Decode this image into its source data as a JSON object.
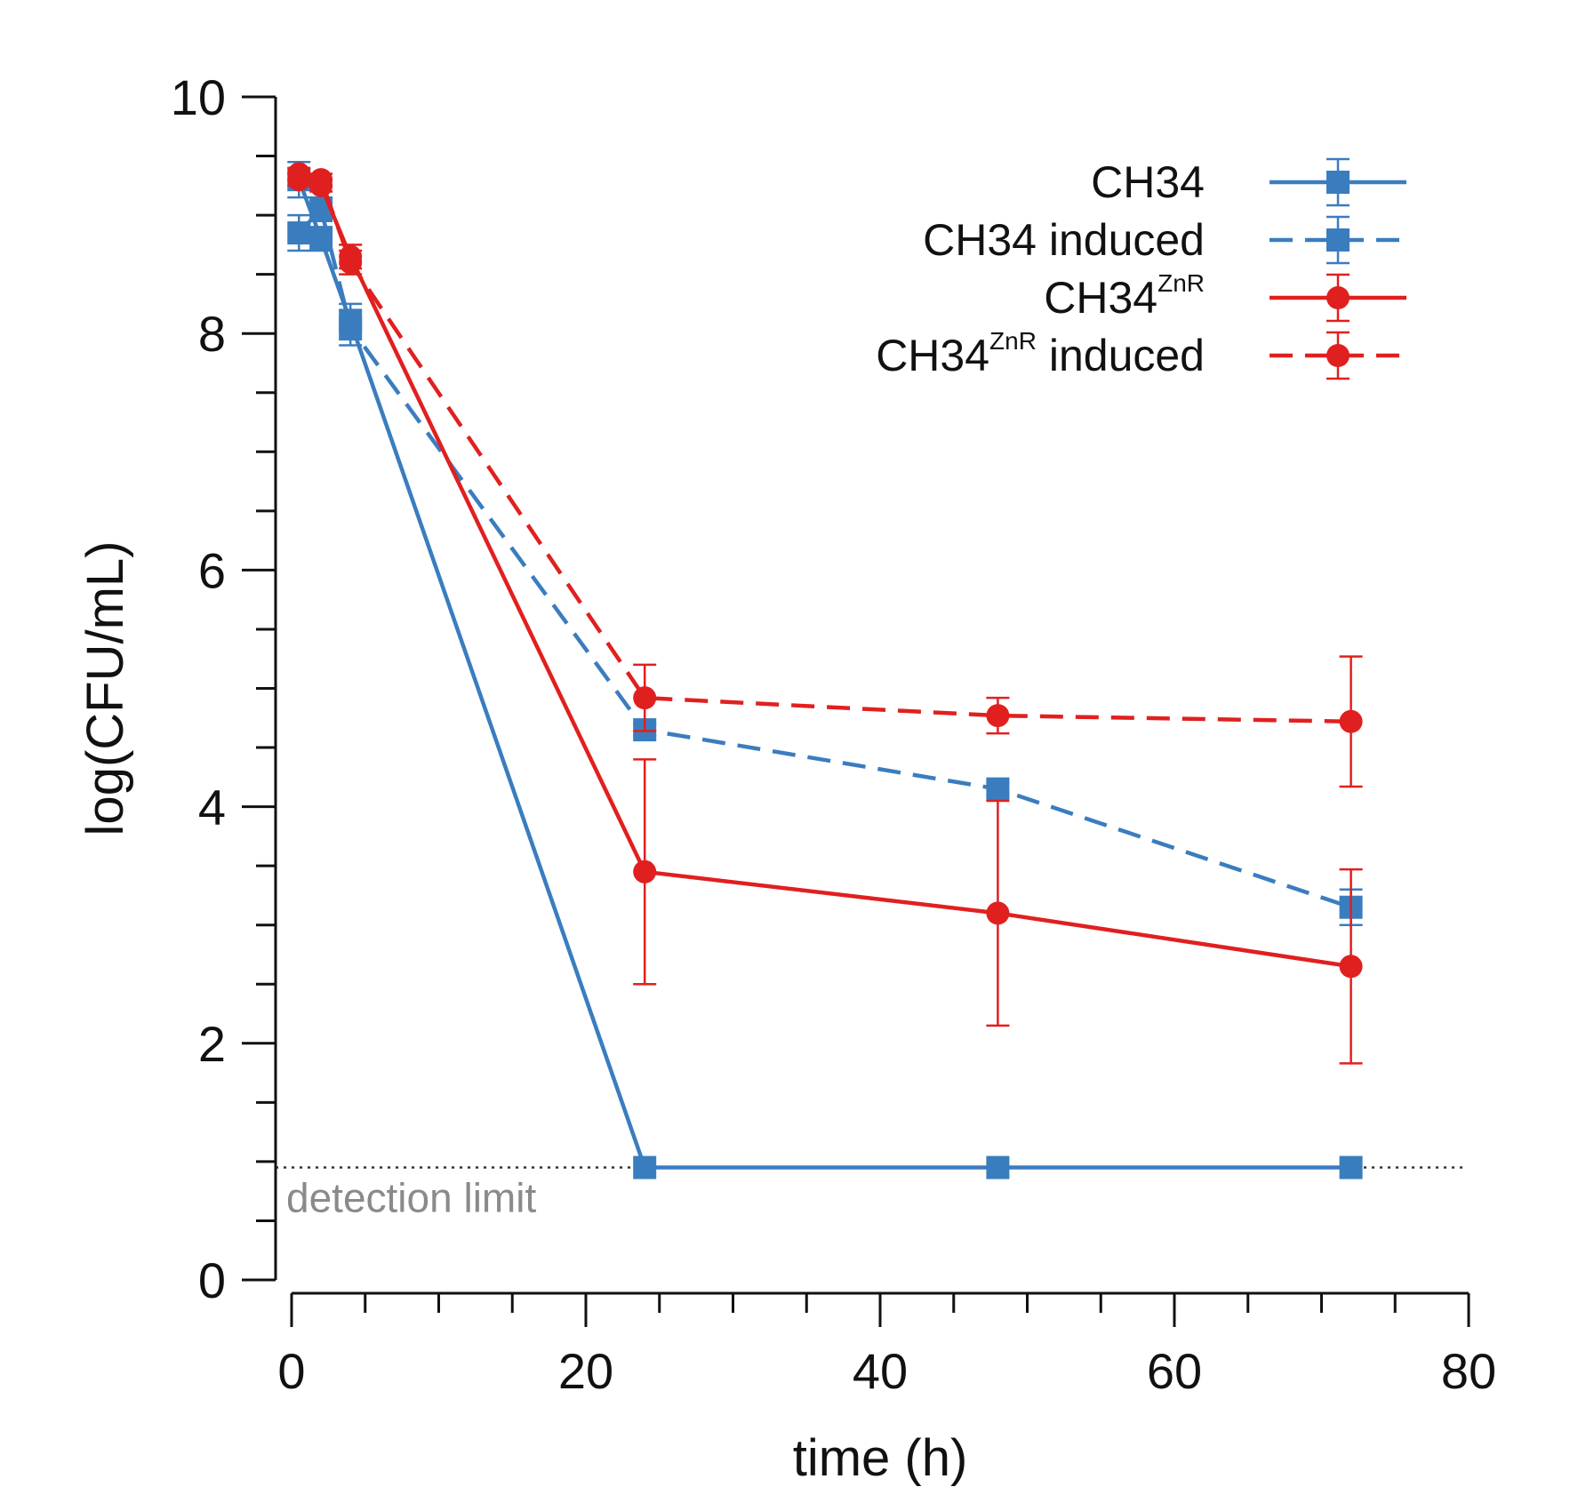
{
  "chart_data": {
    "type": "line",
    "title": "",
    "xlabel": "time (h)",
    "ylabel": "log(CFU/mL)",
    "xlim": [
      0,
      80
    ],
    "ylim": [
      0,
      10
    ],
    "xticks": [
      0,
      20,
      40,
      60,
      80
    ],
    "yticks": [
      0,
      2,
      4,
      6,
      8,
      10
    ],
    "x_tick_labels": [
      "0",
      "20",
      "40",
      "60",
      "80"
    ],
    "y_tick_labels": [
      "0",
      "2",
      "4",
      "6",
      "8",
      "10"
    ],
    "grid": false,
    "legend_position": "top-right",
    "detection_limit": {
      "value": 0.95,
      "label": "detection limit"
    },
    "series": [
      {
        "name": "CH34",
        "name_base": "CH34",
        "name_sup": "",
        "name_suffix": "",
        "color": "#3a7dbf",
        "dashed": false,
        "marker": "square",
        "x": [
          0.5,
          2,
          4,
          24,
          48,
          72
        ],
        "y": [
          9.3,
          8.8,
          8.1,
          0.95,
          0.95,
          0.95
        ],
        "err": [
          0.15,
          0.1,
          0.15,
          0,
          0,
          0
        ]
      },
      {
        "name": "CH34 induced",
        "name_base": "CH34",
        "name_sup": "",
        "name_suffix": " induced",
        "color": "#3a7dbf",
        "dashed": true,
        "marker": "square",
        "x": [
          0.5,
          2,
          4,
          24,
          48,
          72
        ],
        "y": [
          8.85,
          9.05,
          8.05,
          4.65,
          4.15,
          3.15
        ],
        "err": [
          0.15,
          0.1,
          0.15,
          0.05,
          0.05,
          0.15
        ]
      },
      {
        "name": "CH34ZnR",
        "name_base": "CH34",
        "name_sup": "ZnR",
        "name_suffix": "",
        "color": "#e0201f",
        "dashed": false,
        "marker": "circle",
        "x": [
          0.5,
          2,
          4,
          24,
          48,
          72
        ],
        "y": [
          9.35,
          9.25,
          8.65,
          3.45,
          3.1,
          2.65
        ],
        "err": [
          0.05,
          0.05,
          0.1,
          0.95,
          0.95,
          0.82
        ]
      },
      {
        "name": "CH34ZnR induced",
        "name_base": "CH34",
        "name_sup": "ZnR",
        "name_suffix": " induced",
        "color": "#e0201f",
        "dashed": true,
        "marker": "circle",
        "x": [
          0.5,
          2,
          4,
          24,
          48,
          72
        ],
        "y": [
          9.3,
          9.3,
          8.6,
          4.92,
          4.77,
          4.72
        ],
        "err": [
          0.05,
          0.05,
          0.1,
          0.28,
          0.15,
          0.55
        ]
      }
    ]
  }
}
